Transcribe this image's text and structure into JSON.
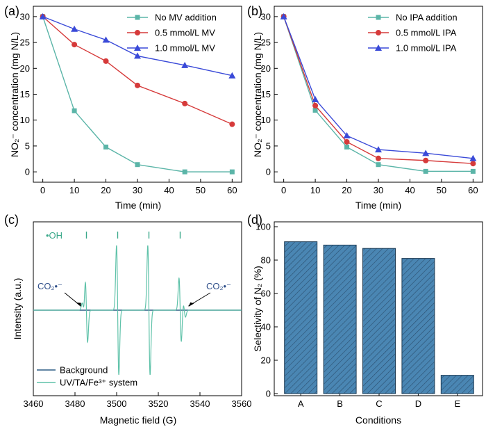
{
  "chart_data": [
    {
      "type": "line",
      "panel": "(a)",
      "xlabel": "Time (min)",
      "ylabel": "NO₂⁻ concentration (mg N/L)",
      "xlim": [
        -3,
        63
      ],
      "ylim": [
        -2,
        32
      ],
      "xticks": [
        0,
        10,
        20,
        30,
        40,
        50,
        60
      ],
      "yticks": [
        0,
        5,
        10,
        15,
        20,
        25,
        30
      ],
      "legend_position": "top-right",
      "x": [
        0,
        10,
        20,
        30,
        45,
        60
      ],
      "series": [
        {
          "name": "No MV addition",
          "marker": "square",
          "color": "#5bb5a8",
          "values": [
            30,
            11.8,
            4.8,
            1.4,
            0,
            0
          ]
        },
        {
          "name": "0.5 mmol/L MV",
          "marker": "circle",
          "color": "#d63a3a",
          "values": [
            30,
            24.6,
            21.4,
            16.7,
            13.2,
            9.2
          ]
        },
        {
          "name": "1.0 mmol/L MV",
          "marker": "triangle",
          "color": "#3a4ad8",
          "values": [
            30,
            27.6,
            25.5,
            22.4,
            20.6,
            18.6
          ]
        }
      ]
    },
    {
      "type": "line",
      "panel": "(b)",
      "xlabel": "Time (min)",
      "ylabel": "NO₂⁻ concentration (mg N/L)",
      "xlim": [
        -3,
        63
      ],
      "ylim": [
        -2,
        32
      ],
      "xticks": [
        0,
        10,
        20,
        30,
        40,
        50,
        60
      ],
      "yticks": [
        0,
        5,
        10,
        15,
        20,
        25,
        30
      ],
      "legend_position": "top-right",
      "x": [
        0,
        10,
        20,
        30,
        45,
        60
      ],
      "series": [
        {
          "name": "No IPA addition",
          "marker": "square",
          "color": "#5bb5a8",
          "values": [
            30,
            11.9,
            4.8,
            1.4,
            0.1,
            0.1
          ]
        },
        {
          "name": "0.5 mmol/L IPA",
          "marker": "circle",
          "color": "#d63a3a",
          "values": [
            30,
            12.8,
            5.8,
            2.6,
            2.2,
            1.6
          ]
        },
        {
          "name": "1.0 mmol/L IPA",
          "marker": "triangle",
          "color": "#3a4ad8",
          "values": [
            30,
            14,
            7,
            4.3,
            3.6,
            2.6
          ]
        }
      ]
    },
    {
      "type": "line",
      "panel": "(c)",
      "xlabel": "Magnetic field (G)",
      "ylabel": "Intensity (a.u.)",
      "xlim": [
        3460,
        3560
      ],
      "ylim": [
        -1,
        1
      ],
      "xticks": [
        3460,
        3480,
        3500,
        3520,
        3540,
        3560
      ],
      "legend_position": "bottom-left",
      "annotations": {
        "oh_label": "•OH",
        "oh_line_positions": [
          3485.5,
          3500.5,
          3515.5,
          3530.5
        ],
        "co2_label": "CO₂•⁻"
      },
      "series": [
        {
          "name": "Background",
          "color": "#2f5f86",
          "values": [],
          "description_values": "flat baseline"
        },
        {
          "name": "UV/TA/Fe³⁺ system",
          "color": "#5fc2a9",
          "peaks": [
            {
              "center": 3485.5,
              "amplitude": 0.46
            },
            {
              "center": 3500.5,
              "amplitude": 0.93
            },
            {
              "center": 3515.5,
              "amplitude": 0.93
            },
            {
              "center": 3530.5,
              "amplitude": 0.46
            }
          ],
          "satellite_peaks": [
            {
              "center": 3484.0,
              "amplitude": 0.1
            },
            {
              "center": 3532.5,
              "amplitude": 0.1
            }
          ]
        }
      ]
    },
    {
      "type": "bar",
      "panel": "(d)",
      "xlabel": "Conditions",
      "ylabel": "Selectivity of N₂ (%)",
      "ylim": [
        0,
        100
      ],
      "yticks": [
        0,
        20,
        40,
        60,
        80,
        100
      ],
      "categories": [
        "A",
        "B",
        "C",
        "D",
        "E"
      ],
      "values": [
        91,
        89,
        87,
        81,
        11
      ],
      "color": "#4a86b3",
      "hatch": "diagonal"
    }
  ]
}
